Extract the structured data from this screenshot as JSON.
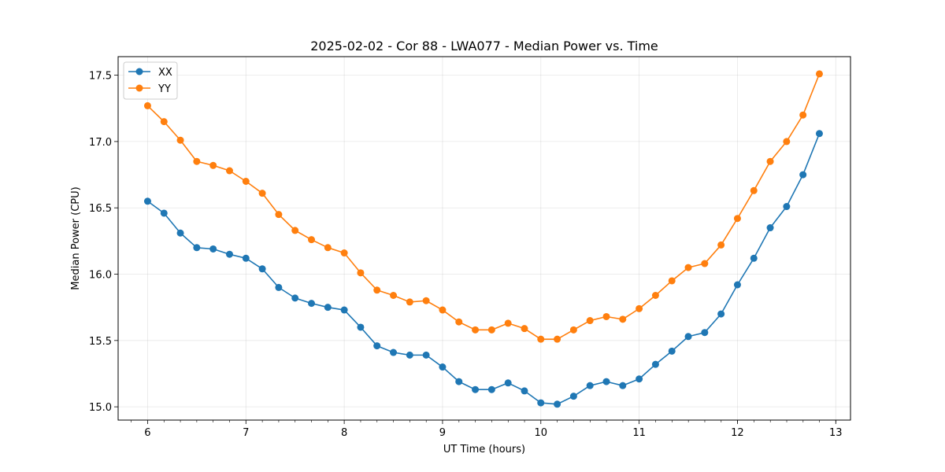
{
  "chart_data": {
    "type": "line",
    "title": "2025-02-02 - Cor 88 - LWA077 - Median Power vs. Time",
    "xlabel": "UT Time (hours)",
    "ylabel": "Median Power (CPU)",
    "xlim": [
      5.7,
      13.15
    ],
    "ylim": [
      14.9,
      17.64
    ],
    "xticks": [
      6,
      7,
      8,
      9,
      10,
      11,
      12,
      13
    ],
    "yticks": [
      15.0,
      15.5,
      16.0,
      16.5,
      17.0,
      17.5
    ],
    "ytick_labels": [
      "15.0",
      "15.5",
      "16.0",
      "16.5",
      "17.0",
      "17.5"
    ],
    "x_minor_step": 0.1667,
    "grid": true,
    "legend_position": "top-left",
    "x": [
      6.0,
      6.1667,
      6.3333,
      6.5,
      6.6667,
      6.8333,
      7.0,
      7.1667,
      7.3333,
      7.5,
      7.6667,
      7.8333,
      8.0,
      8.1667,
      8.3333,
      8.5,
      8.6667,
      8.8333,
      9.0,
      9.1667,
      9.3333,
      9.5,
      9.6667,
      9.8333,
      10.0,
      10.1667,
      10.3333,
      10.5,
      10.6667,
      10.8333,
      11.0,
      11.1667,
      11.3333,
      11.5,
      11.6667,
      11.8333,
      12.0,
      12.1667,
      12.3333,
      12.5,
      12.6667,
      12.8333
    ],
    "series": [
      {
        "name": "XX",
        "color": "#1f77b4",
        "values": [
          16.55,
          16.46,
          16.31,
          16.2,
          16.19,
          16.15,
          16.12,
          16.04,
          15.9,
          15.82,
          15.78,
          15.75,
          15.73,
          15.6,
          15.46,
          15.41,
          15.39,
          15.39,
          15.3,
          15.19,
          15.13,
          15.13,
          15.18,
          15.12,
          15.03,
          15.02,
          15.08,
          15.16,
          15.19,
          15.16,
          15.21,
          15.32,
          15.42,
          15.53,
          15.56,
          15.7,
          15.92,
          16.12,
          16.35,
          16.51,
          16.75,
          17.06
        ]
      },
      {
        "name": "YY",
        "color": "#ff7f0e",
        "values": [
          17.27,
          17.15,
          17.01,
          16.85,
          16.82,
          16.78,
          16.7,
          16.61,
          16.45,
          16.33,
          16.26,
          16.2,
          16.16,
          16.01,
          15.88,
          15.84,
          15.79,
          15.8,
          15.73,
          15.64,
          15.58,
          15.58,
          15.63,
          15.59,
          15.51,
          15.51,
          15.58,
          15.65,
          15.68,
          15.66,
          15.74,
          15.84,
          15.95,
          16.05,
          16.08,
          16.22,
          16.42,
          16.63,
          16.85,
          17.0,
          17.2,
          17.51
        ]
      }
    ]
  }
}
